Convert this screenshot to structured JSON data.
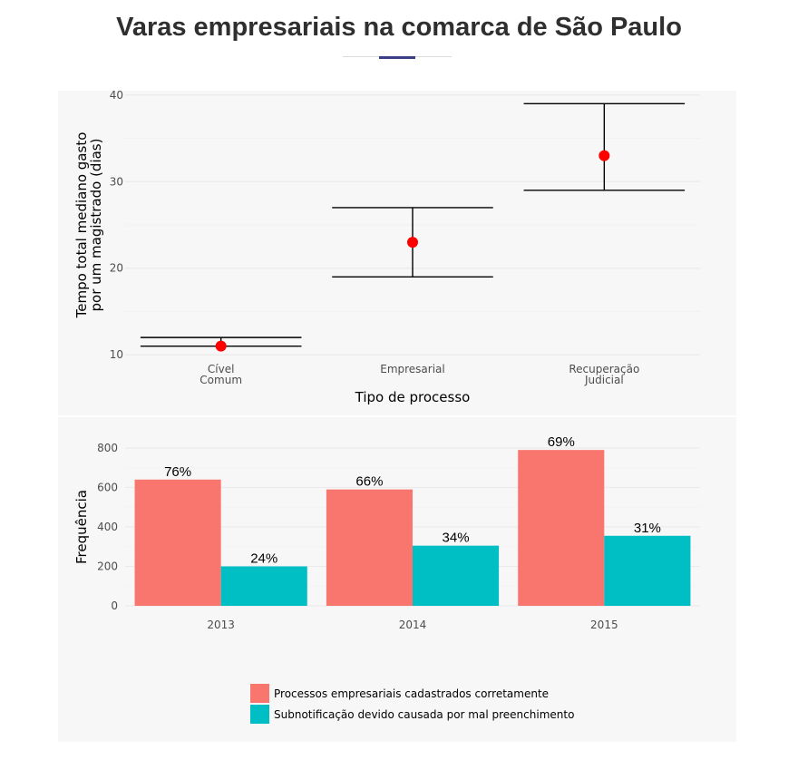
{
  "page": {
    "title": "Varas empresariais na comarca de São Paulo"
  },
  "colors": {
    "title_accent": "#3b3f86",
    "point": "#ff0000",
    "error_bar": "#000000",
    "series": [
      "#f8766d",
      "#00bfc4"
    ]
  },
  "chart_data": [
    {
      "type": "scatter",
      "subtype": "point-with-errorbars",
      "categories": [
        {
          "label": "Cível\nComum",
          "y": 11,
          "low": 11,
          "high": 12
        },
        {
          "label": "Empresarial",
          "y": 23,
          "low": 19,
          "high": 27
        },
        {
          "label": "Recuperação\nJudicial",
          "y": 33,
          "low": 29,
          "high": 39
        }
      ],
      "xlabel": "Tipo de processo",
      "ylabel": "Tempo total mediano gasto\npor um magistrado (dias)",
      "ylim": [
        9.5,
        40.5
      ],
      "yticks": [
        10,
        20,
        30,
        40
      ],
      "grid": true
    },
    {
      "type": "bar",
      "categories": [
        "2013",
        "2014",
        "2015"
      ],
      "series": [
        {
          "name": "Processos empresariais cadastrados corretamente",
          "values": [
            640,
            590,
            790
          ],
          "labels": [
            "76%",
            "66%",
            "69%"
          ]
        },
        {
          "name": "Subnotificação devido causada por mal preenchimento",
          "values": [
            200,
            305,
            355
          ],
          "labels": [
            "24%",
            "34%",
            "31%"
          ]
        }
      ],
      "xlabel": "",
      "ylabel": "Frequência",
      "ylim": [
        0,
        800
      ],
      "yticks": [
        0,
        200,
        400,
        600,
        800
      ],
      "grid": true,
      "legend": "bottom"
    }
  ]
}
